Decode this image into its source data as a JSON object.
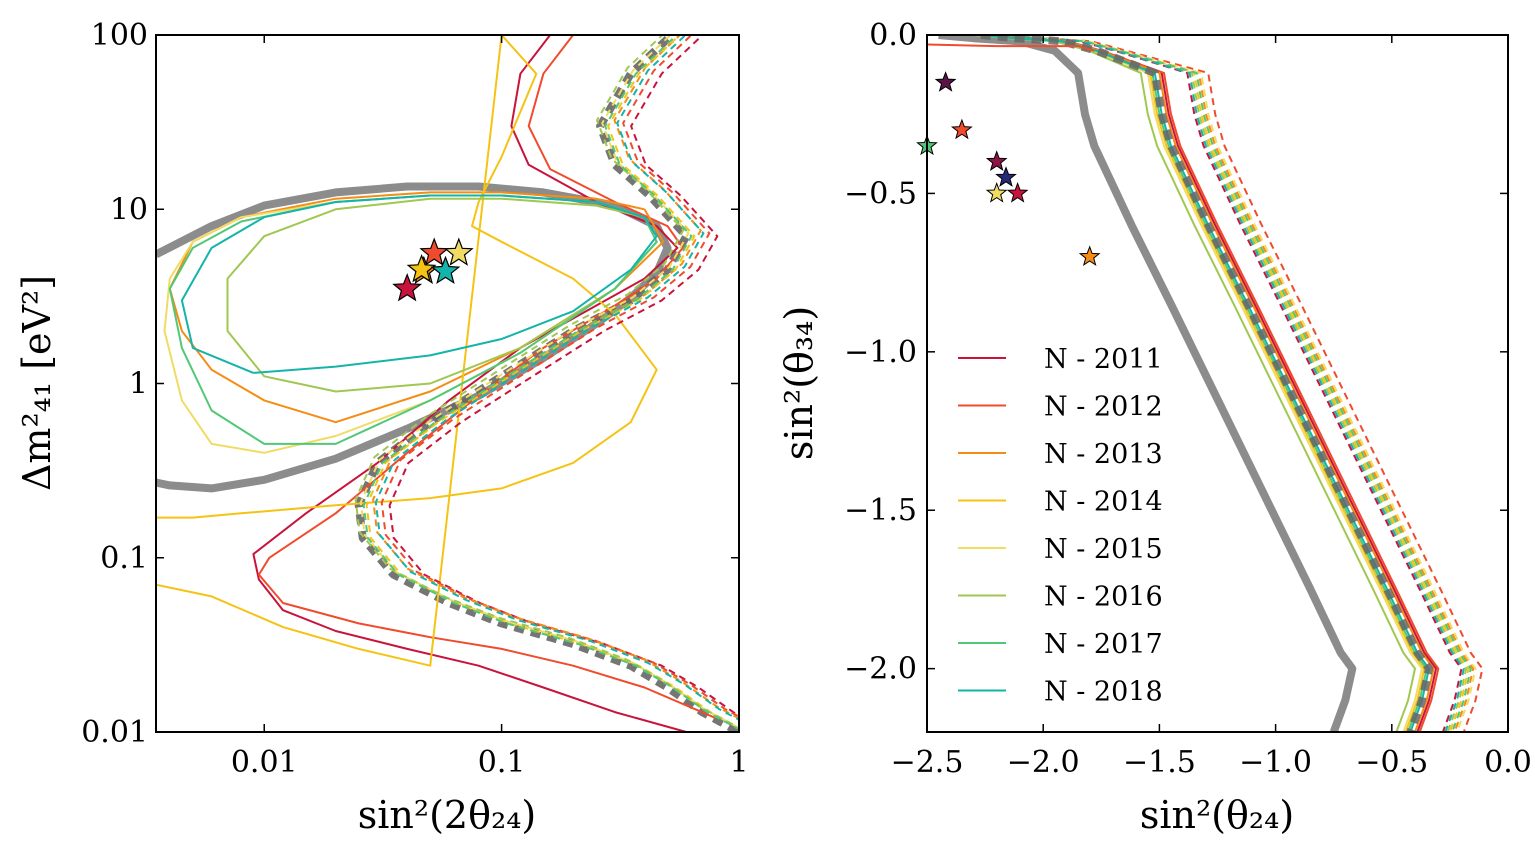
{
  "chart_data": [
    {
      "type": "line",
      "panel": "left",
      "xlabel": "sin²(2θ₂₄)",
      "ylabel": "Δm²₄₁ [eV²]",
      "xscale": "log",
      "yscale": "log",
      "xlim": [
        0.0035,
        1
      ],
      "ylim": [
        0.01,
        100
      ],
      "xticks": [
        0.01,
        0.1,
        1
      ],
      "xtick_labels": [
        "0.01",
        "0.1",
        "1"
      ],
      "yticks": [
        0.01,
        0.1,
        1,
        10,
        100
      ],
      "ytick_labels": [
        "0.01",
        "0.1",
        "1",
        "10",
        "100"
      ],
      "series": [
        {
          "name": "reference solid (thick)",
          "color": "#808080",
          "style": "solid-thick",
          "x": [
            0.0035,
            0.006,
            0.01,
            0.02,
            0.04,
            0.08,
            0.15,
            0.3,
            0.45,
            0.5,
            0.45,
            0.35,
            0.25,
            0.15,
            0.08,
            0.04,
            0.02,
            0.01,
            0.006,
            0.004,
            0.0035
          ],
          "y": [
            5.5,
            8,
            10.5,
            12.5,
            13.5,
            13.5,
            12.5,
            10.5,
            8,
            6,
            4.3,
            3.1,
            2.2,
            1.4,
            0.85,
            0.55,
            0.37,
            0.28,
            0.25,
            0.26,
            0.27
          ]
        },
        {
          "name": "reference dashed (thick)",
          "color": "#666666",
          "style": "dashed-thick",
          "x": [
            0.5,
            0.35,
            0.26,
            0.3,
            0.42,
            0.6,
            0.5,
            0.35,
            0.2,
            0.1,
            0.05,
            0.03,
            0.025,
            0.026,
            0.035,
            0.06,
            0.1,
            0.2,
            0.35,
            0.5,
            0.7,
            1
          ],
          "y": [
            95,
            60,
            30,
            18,
            12,
            7,
            4.5,
            3,
            2,
            1.1,
            0.6,
            0.35,
            0.2,
            0.13,
            0.08,
            0.055,
            0.042,
            0.032,
            0.024,
            0.018,
            0.013,
            0.01
          ]
        },
        {
          "name": "N - 2011 solid",
          "color": "#c8143c",
          "style": "solid",
          "x": [
            0.16,
            0.12,
            0.11,
            0.13,
            0.25,
            0.45,
            0.55,
            0.4,
            0.25,
            0.12,
            0.06,
            0.03,
            0.015,
            0.009,
            0.0095,
            0.012,
            0.02,
            0.04,
            0.08,
            0.15,
            0.3,
            0.6
          ],
          "y": [
            100,
            60,
            30,
            18,
            11,
            8,
            6,
            4,
            2.8,
            1.6,
            0.8,
            0.35,
            0.18,
            0.105,
            0.075,
            0.05,
            0.038,
            0.03,
            0.024,
            0.018,
            0.013,
            0.01
          ]
        },
        {
          "name": "N - 2012 solid",
          "color": "#f04b2d",
          "style": "solid",
          "x": [
            0.2,
            0.15,
            0.13,
            0.16,
            0.3,
            0.5,
            0.58,
            0.45,
            0.3,
            0.15,
            0.08,
            0.04,
            0.02,
            0.0105,
            0.0095,
            0.012,
            0.025,
            0.05,
            0.1,
            0.2,
            0.4,
            0.8
          ],
          "y": [
            100,
            60,
            30,
            17,
            11,
            8,
            6,
            4,
            2.8,
            1.6,
            0.85,
            0.4,
            0.18,
            0.1,
            0.08,
            0.055,
            0.042,
            0.035,
            0.03,
            0.024,
            0.018,
            0.012
          ]
        },
        {
          "name": "N - 2013 solid (closed)",
          "color": "#f58c14",
          "style": "solid",
          "x": [
            0.4,
            0.25,
            0.1,
            0.05,
            0.02,
            0.008,
            0.005,
            0.004,
            0.0045,
            0.006,
            0.01,
            0.02,
            0.05,
            0.12,
            0.3,
            0.48,
            0.4
          ],
          "y": [
            10,
            11.5,
            12.5,
            12.5,
            11.5,
            9,
            6.5,
            3.5,
            2,
            1.2,
            0.8,
            0.6,
            0.9,
            1.6,
            3.5,
            6.5,
            10
          ]
        },
        {
          "name": "N - 2014 solid",
          "color": "#f5c314",
          "style": "solid",
          "x": [
            0.0035,
            0.005,
            0.008,
            0.02,
            0.05,
            0.1,
            0.2,
            0.35,
            0.45,
            0.3,
            0.2,
            0.1,
            0.075,
            0.08,
            0.1,
            0.14,
            0.1,
            0.05,
            0.025,
            0.012,
            0.006,
            0.0035
          ],
          "y": [
            0.17,
            0.17,
            0.18,
            0.2,
            0.22,
            0.25,
            0.35,
            0.6,
            1.2,
            2.5,
            4,
            6.5,
            8,
            11,
            20,
            60,
            100,
            0.024,
            0.03,
            0.04,
            0.06,
            0.07
          ]
        },
        {
          "name": "N - 2015 solid",
          "color": "#f0dc64",
          "style": "solid",
          "x": [
            0.4,
            0.25,
            0.1,
            0.05,
            0.02,
            0.008,
            0.005,
            0.004,
            0.0038,
            0.0045,
            0.006,
            0.01,
            0.02,
            0.05,
            0.12,
            0.3,
            0.45,
            0.4
          ],
          "y": [
            9,
            11,
            12,
            12,
            11,
            9,
            6.5,
            4,
            2,
            0.8,
            0.45,
            0.4,
            0.5,
            0.8,
            1.5,
            3.5,
            6.5,
            9
          ]
        },
        {
          "name": "N - 2016 solid",
          "color": "#a0c850",
          "style": "solid",
          "x": [
            0.4,
            0.25,
            0.1,
            0.05,
            0.02,
            0.01,
            0.007,
            0.007,
            0.01,
            0.02,
            0.05,
            0.12,
            0.3,
            0.45,
            0.4
          ],
          "y": [
            9,
            10.5,
            11.5,
            11.5,
            10,
            7,
            4,
            2,
            1.1,
            0.9,
            1.0,
            1.6,
            3.5,
            6.5,
            9
          ]
        },
        {
          "name": "N - 2017 solid",
          "color": "#50c878",
          "style": "solid",
          "x": [
            0.4,
            0.25,
            0.1,
            0.05,
            0.02,
            0.008,
            0.005,
            0.004,
            0.0045,
            0.006,
            0.01,
            0.02,
            0.05,
            0.12,
            0.3,
            0.45,
            0.4
          ],
          "y": [
            9,
            11,
            12,
            12,
            11,
            8.5,
            6,
            3.5,
            1.6,
            0.7,
            0.45,
            0.45,
            0.8,
            1.5,
            3.5,
            6.5,
            9
          ]
        },
        {
          "name": "N - 2018 solid",
          "color": "#14b4aa",
          "style": "solid",
          "x": [
            0.009,
            0.02,
            0.05,
            0.1,
            0.2,
            0.35,
            0.45,
            0.4,
            0.25,
            0.1,
            0.05,
            0.02,
            0.01,
            0.006,
            0.0045,
            0.005,
            0.009
          ],
          "y": [
            1.15,
            1.25,
            1.45,
            1.8,
            2.6,
            4.5,
            7,
            9,
            11,
            12,
            12,
            11,
            9,
            6,
            3,
            1.6,
            1.15
          ]
        }
      ],
      "markers": [
        {
          "name": "N - 2011 best fit",
          "color": "#c8143c",
          "x": 0.04,
          "y": 3.5
        },
        {
          "name": "N - 2012 best fit",
          "color": "#f04b2d",
          "x": 0.052,
          "y": 5.6
        },
        {
          "name": "N - 2013 best fit",
          "color": "#f58c14",
          "x": 0.047,
          "y": 4.4
        },
        {
          "name": "N - 2014 best fit",
          "color": "#f5c314",
          "x": 0.046,
          "y": 4.5
        },
        {
          "name": "N - 2015 best fit",
          "color": "#f0dc64",
          "x": 0.066,
          "y": 5.6
        },
        {
          "name": "N - 2018 best fit",
          "color": "#14b4aa",
          "x": 0.058,
          "y": 4.4
        }
      ]
    },
    {
      "type": "line",
      "panel": "right",
      "xlabel": "sin²(θ₂₄)",
      "ylabel": "sin²(θ₃₄)",
      "xlim": [
        -2.5,
        0.0
      ],
      "ylim": [
        -2.2,
        0.0
      ],
      "xticks": [
        -2.5,
        -2.0,
        -1.5,
        -1.0,
        -0.5,
        0.0
      ],
      "xtick_labels": [
        "−2.5",
        "−2.0",
        "−1.5",
        "−1.0",
        "−0.5",
        "0.0"
      ],
      "yticks": [
        0.0,
        -0.5,
        -1.0,
        -1.5,
        -2.0
      ],
      "ytick_labels": [
        "0.0",
        "−0.5",
        "−1.0",
        "−1.5",
        "−2.0"
      ],
      "reference_solid": {
        "color": "#808080",
        "x": [
          -2.45,
          -2.3,
          -2.1,
          -1.95,
          -1.85,
          -1.82,
          -1.78,
          -1.62,
          -1.45,
          -1.25,
          -1.05,
          -0.85,
          -0.72,
          -0.67,
          -0.7,
          -0.75
        ],
        "y": [
          0.0,
          -0.01,
          -0.02,
          -0.05,
          -0.12,
          -0.25,
          -0.35,
          -0.6,
          -0.85,
          -1.15,
          -1.45,
          -1.75,
          -1.95,
          -2.0,
          -2.1,
          -2.2
        ]
      },
      "reference_dashed": {
        "color": "#666666",
        "shift": 0.33
      },
      "series": [
        {
          "name": "N - 2011",
          "color": "#c8143c",
          "shift": 0.36,
          "dashed_shift": 0.47
        },
        {
          "name": "N - 2012",
          "color": "#f04b2d",
          "shift": 0.37,
          "dashed_shift": 0.56
        },
        {
          "name": "N - 2013",
          "color": "#f58c14",
          "shift": 0.35,
          "dashed_shift": 0.52
        },
        {
          "name": "N - 2014",
          "color": "#f5c314",
          "shift": 0.31,
          "dashed_shift": 0.5
        },
        {
          "name": "N - 2015",
          "color": "#f0dc64",
          "shift": 0.3,
          "dashed_shift": 0.53
        },
        {
          "name": "N - 2016",
          "color": "#a0c850",
          "shift": 0.27,
          "dashed_shift": 0.49
        },
        {
          "name": "N - 2017",
          "color": "#50c878",
          "shift": 0.32,
          "dashed_shift": 0.51
        },
        {
          "name": "N - 2018",
          "color": "#14b4aa",
          "shift": 0.33,
          "dashed_shift": 0.48
        }
      ],
      "markers": [
        {
          "name": "marker-2011",
          "color": "#c8143c",
          "x": -2.11,
          "y": -0.5
        },
        {
          "name": "marker-2012",
          "color": "#f04b2d",
          "x": -2.35,
          "y": -0.3
        },
        {
          "name": "marker-2013",
          "color": "#f58c14",
          "x": -1.8,
          "y": -0.7
        },
        {
          "name": "marker-2014",
          "color": "#f0dc64",
          "x": -2.2,
          "y": -0.5
        },
        {
          "name": "marker-2016",
          "color": "#282878",
          "x": -2.16,
          "y": -0.45
        },
        {
          "name": "marker-2017",
          "color": "#8c1446",
          "x": -2.2,
          "y": -0.4
        },
        {
          "name": "marker-2018",
          "color": "#50c878",
          "x": -2.5,
          "y": -0.35
        },
        {
          "name": "marker-top",
          "color": "#5a1446",
          "x": -2.42,
          "y": -0.15
        }
      ],
      "legend": {
        "placement": "lower-left",
        "entries": [
          {
            "label": "N - 2011",
            "color": "#c8143c"
          },
          {
            "label": "N - 2012",
            "color": "#f04b2d"
          },
          {
            "label": "N - 2013",
            "color": "#f58c14"
          },
          {
            "label": "N - 2014",
            "color": "#f5c314"
          },
          {
            "label": "N - 2015",
            "color": "#f0dc64"
          },
          {
            "label": "N - 2016",
            "color": "#a0c850"
          },
          {
            "label": "N - 2017",
            "color": "#50c878"
          },
          {
            "label": "N - 2018",
            "color": "#14b4aa"
          }
        ]
      }
    }
  ]
}
